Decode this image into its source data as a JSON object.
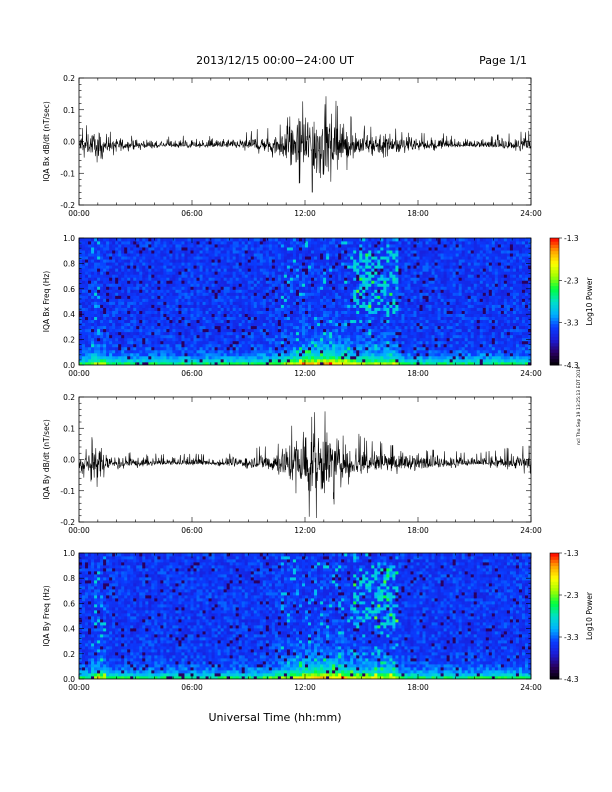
{
  "header": {
    "title": "2013/12/15  00:00−24:00 UT",
    "page": "Page 1/1"
  },
  "side_note": "ncl Thu Sep 19 13:25:13 EDT 2019",
  "x_axis": {
    "label": "Universal Time (hh:mm)",
    "ticks": [
      "00:00",
      "06:00",
      "12:00",
      "18:00",
      "24:00"
    ],
    "range_hours": [
      0,
      24
    ]
  },
  "colors": {
    "trace": "#000000",
    "colormap": [
      "#000000",
      "#2a0060",
      "#1b1bd6",
      "#0a3cff",
      "#00b0ff",
      "#00e0c8",
      "#00ff40",
      "#a0ff00",
      "#ffff00",
      "#ffa000",
      "#ff0000"
    ],
    "spectrogram_background": "#1e22c8"
  },
  "chart_data": [
    {
      "type": "line",
      "name": "bx-dbdt",
      "ylabel": "IQA Bx dB/dt (nT/sec)",
      "xlabel": "",
      "ylim": [
        -0.2,
        0.2
      ],
      "yticks": [
        "-0.2",
        "-0.1",
        "0.0",
        "0.1",
        "0.2"
      ],
      "envelope": {
        "x_hours": [
          0,
          0.5,
          1,
          1.5,
          2,
          3,
          4,
          5,
          6,
          7,
          8,
          9,
          10,
          10.5,
          11,
          11.5,
          12,
          12.5,
          13,
          13.5,
          14,
          14.5,
          15,
          15.5,
          16,
          16.5,
          17,
          18,
          19,
          20,
          21,
          22,
          23,
          24
        ],
        "upper": [
          0.05,
          0.06,
          0.06,
          0.04,
          0.03,
          0.02,
          0.02,
          0.02,
          0.02,
          0.02,
          0.025,
          0.03,
          0.05,
          0.06,
          0.08,
          0.12,
          0.18,
          0.2,
          0.2,
          0.14,
          0.1,
          0.08,
          0.06,
          0.05,
          0.07,
          0.06,
          0.04,
          0.03,
          0.03,
          0.02,
          0.02,
          0.02,
          0.03,
          0.04
        ],
        "lower": [
          -0.05,
          -0.06,
          -0.07,
          -0.05,
          -0.04,
          -0.03,
          -0.02,
          -0.02,
          -0.02,
          -0.02,
          -0.025,
          -0.03,
          -0.05,
          -0.07,
          -0.09,
          -0.14,
          -0.2,
          -0.2,
          -0.2,
          -0.14,
          -0.1,
          -0.08,
          -0.07,
          -0.05,
          -0.06,
          -0.05,
          -0.04,
          -0.03,
          -0.03,
          -0.02,
          -0.02,
          -0.02,
          -0.03,
          -0.04
        ]
      }
    },
    {
      "type": "heatmap",
      "name": "bx-freq",
      "ylabel": "IQA Bx Freq (Hz)",
      "xlabel": "",
      "ylim": [
        0.0,
        1.0
      ],
      "yticks": [
        "0.0",
        "0.2",
        "0.4",
        "0.6",
        "0.8",
        "1.0"
      ],
      "colorbar": {
        "label": "Log10 Power",
        "ticks": [
          "-1.3",
          "-2.3",
          "-3.3",
          "-4.3"
        ],
        "range": [
          -4.3,
          -1.3
        ]
      }
    },
    {
      "type": "line",
      "name": "by-dbdt",
      "ylabel": "IQA By dB/dt (nT/sec)",
      "xlabel": "",
      "ylim": [
        -0.2,
        0.2
      ],
      "yticks": [
        "-0.2",
        "-0.1",
        "0.0",
        "0.1",
        "0.2"
      ],
      "envelope": {
        "x_hours": [
          0,
          0.5,
          1,
          1.5,
          2,
          3,
          4,
          5,
          6,
          7,
          8,
          9,
          10,
          10.5,
          11,
          11.5,
          12,
          12.5,
          13,
          13.5,
          14,
          14.5,
          15,
          15.5,
          16,
          16.5,
          17,
          18,
          19,
          20,
          21,
          22,
          23,
          24
        ],
        "upper": [
          0.05,
          0.07,
          0.08,
          0.05,
          0.03,
          0.02,
          0.02,
          0.02,
          0.02,
          0.02,
          0.025,
          0.03,
          0.05,
          0.06,
          0.09,
          0.14,
          0.2,
          0.2,
          0.2,
          0.14,
          0.1,
          0.09,
          0.08,
          0.06,
          0.07,
          0.06,
          0.05,
          0.04,
          0.03,
          0.03,
          0.02,
          0.03,
          0.04,
          0.05
        ],
        "lower": [
          -0.05,
          -0.07,
          -0.09,
          -0.06,
          -0.04,
          -0.03,
          -0.02,
          -0.02,
          -0.02,
          -0.02,
          -0.025,
          -0.03,
          -0.05,
          -0.07,
          -0.1,
          -0.16,
          -0.2,
          -0.2,
          -0.2,
          -0.15,
          -0.1,
          -0.09,
          -0.08,
          -0.06,
          -0.06,
          -0.05,
          -0.05,
          -0.04,
          -0.03,
          -0.03,
          -0.02,
          -0.03,
          -0.04,
          -0.05
        ]
      }
    },
    {
      "type": "heatmap",
      "name": "by-freq",
      "ylabel": "IQA By Freq (Hz)",
      "xlabel": "Universal Time (hh:mm)",
      "ylim": [
        0.0,
        1.0
      ],
      "yticks": [
        "0.0",
        "0.2",
        "0.4",
        "0.6",
        "0.8",
        "1.0"
      ],
      "colorbar": {
        "label": "Log10 Power",
        "ticks": [
          "-1.3",
          "-2.3",
          "-3.3",
          "-4.3"
        ],
        "range": [
          -4.3,
          -1.3
        ]
      }
    }
  ]
}
